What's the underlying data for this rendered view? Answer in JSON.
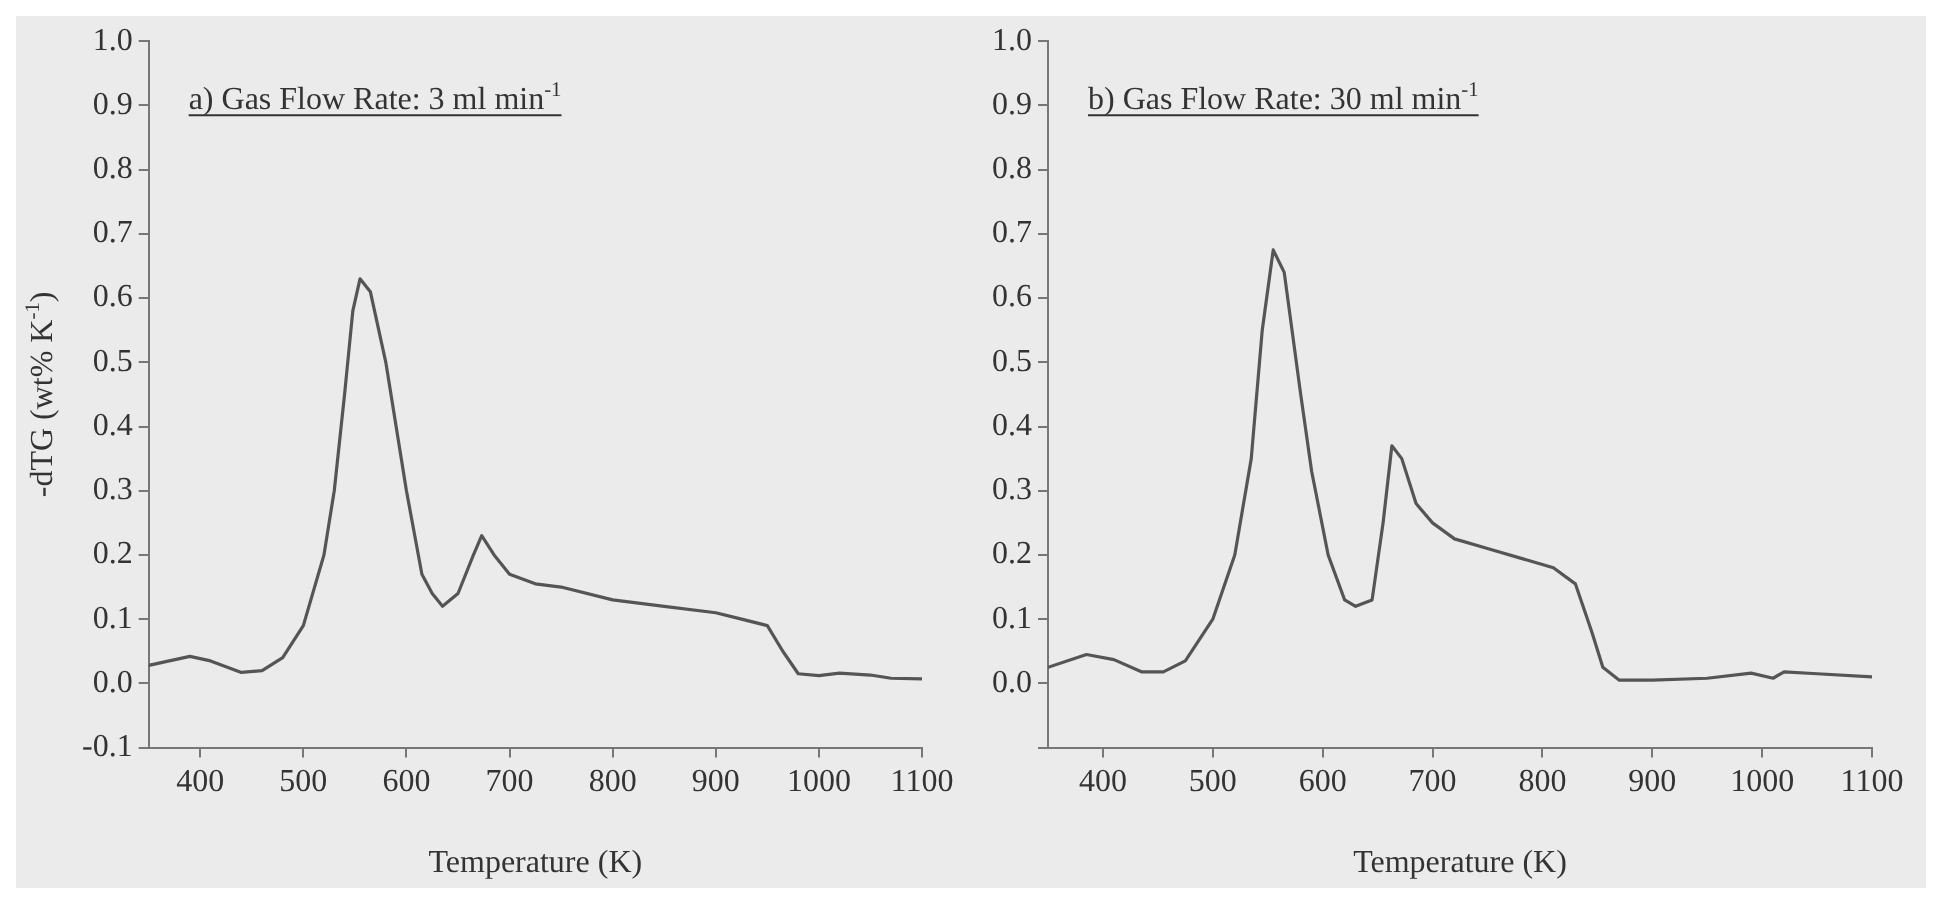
{
  "chart_data": [
    {
      "type": "line",
      "title": "a) Gas Flow Rate: 3 ml min$^{-1}$",
      "xlabel": "Temperature (K)",
      "ylabel": "-dTG (wt% K$^{-1}$)",
      "x": [
        350,
        390,
        410,
        440,
        460,
        480,
        500,
        520,
        530,
        540,
        548,
        555,
        565,
        580,
        600,
        615,
        625,
        635,
        650,
        665,
        673,
        685,
        700,
        725,
        750,
        800,
        850,
        900,
        925,
        950,
        965,
        980,
        1000,
        1020,
        1050,
        1070,
        1100
      ],
      "series": [
        {
          "color": "#555555",
          "values": [
            0.028,
            0.042,
            0.035,
            0.017,
            0.02,
            0.04,
            0.09,
            0.2,
            0.3,
            0.45,
            0.58,
            0.63,
            0.61,
            0.5,
            0.3,
            0.17,
            0.14,
            0.12,
            0.14,
            0.2,
            0.23,
            0.2,
            0.17,
            0.155,
            0.15,
            0.13,
            0.12,
            0.11,
            0.1,
            0.09,
            0.05,
            0.015,
            0.012,
            0.016,
            0.013,
            0.008,
            0.007
          ]
        }
      ],
      "xlim": [
        350,
        1100
      ],
      "xticks": [
        400,
        500,
        600,
        700,
        800,
        900,
        1000,
        1100
      ],
      "ylim": [
        -0.1,
        1.0
      ],
      "yticks": [
        {
          "value": -0.1,
          "label": "-0.1"
        },
        {
          "value": 0,
          "label": "0.0"
        },
        0.1,
        0.2,
        0.3,
        0.4,
        0.5,
        0.6,
        0.7,
        0.8,
        0.9,
        {
          "value": 1,
          "label": "1.0"
        }
      ]
    },
    {
      "type": "line",
      "title": "b) Gas Flow Rate: 30 ml min$^{-1}$",
      "xlabel": "Temperature (K)",
      "x": [
        350,
        385,
        410,
        435,
        455,
        475,
        500,
        520,
        535,
        545,
        555,
        565,
        580,
        590,
        605,
        620,
        630,
        645,
        655,
        663,
        672,
        685,
        700,
        720,
        750,
        780,
        810,
        830,
        845,
        855,
        870,
        900,
        950,
        990,
        1010,
        1020,
        1050,
        1100
      ],
      "series": [
        {
          "color": "#555555",
          "values": [
            0.025,
            0.045,
            0.037,
            0.018,
            0.018,
            0.035,
            0.1,
            0.2,
            0.35,
            0.55,
            0.675,
            0.64,
            0.45,
            0.33,
            0.2,
            0.13,
            0.12,
            0.13,
            0.25,
            0.37,
            0.35,
            0.28,
            0.25,
            0.225,
            0.21,
            0.195,
            0.18,
            0.155,
            0.08,
            0.025,
            0.005,
            0.005,
            0.008,
            0.016,
            0.008,
            0.018,
            0.015,
            0.01
          ]
        }
      ],
      "xlim": [
        350,
        1100
      ],
      "xticks": [
        400,
        500,
        600,
        700,
        800,
        900,
        1000,
        1100
      ],
      "ylim": [
        -0.1,
        1.0
      ],
      "yticks": [
        {
          "value": -0.1,
          "label": null
        },
        {
          "value": 0,
          "label": "0.0"
        },
        0.1,
        0.2,
        0.3,
        0.4,
        0.5,
        0.6,
        0.7,
        0.8,
        0.9,
        {
          "value": 1,
          "label": "1.0"
        }
      ]
    }
  ]
}
